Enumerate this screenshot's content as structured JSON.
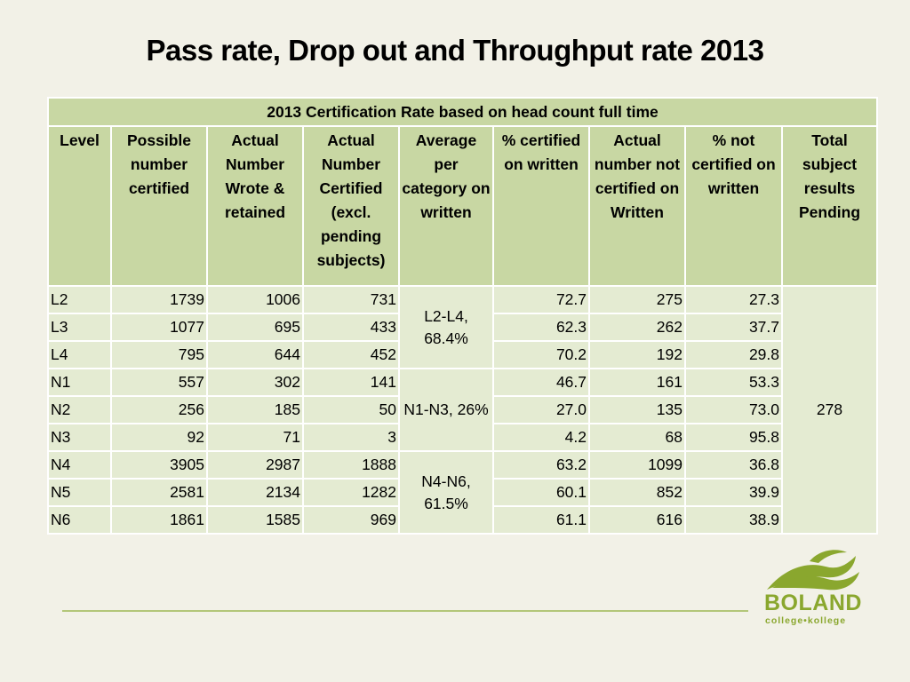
{
  "title": "Pass rate, Drop out and Throughput rate 2013",
  "table": {
    "caption": "2013 Certification Rate based on head count full time",
    "headers": [
      "Level",
      "Possible number certified",
      "Actual Number Wrote & retained",
      "Actual Number Certified (excl. pending subjects)",
      "Average per category on written",
      "% certified on written",
      "Actual number not certified on Written",
      "% not certified on written",
      "Total subject results Pending"
    ],
    "rows": [
      [
        "L2",
        "1739",
        "1006",
        "731",
        "72.7",
        "275",
        "27.3"
      ],
      [
        "L3",
        "1077",
        "695",
        "433",
        "62.3",
        "262",
        "37.7"
      ],
      [
        "L4",
        "795",
        "644",
        "452",
        "70.2",
        "192",
        "29.8"
      ],
      [
        "N1",
        "557",
        "302",
        "141",
        "46.7",
        "161",
        "53.3"
      ],
      [
        "N2",
        "256",
        "185",
        "50",
        "27.0",
        "135",
        "73.0"
      ],
      [
        "N3",
        "92",
        "71",
        "3",
        "4.2",
        "68",
        "95.8"
      ],
      [
        "N4",
        "3905",
        "2987",
        "1888",
        "63.2",
        "1099",
        "36.8"
      ],
      [
        "N5",
        "2581",
        "2134",
        "1282",
        "60.1",
        "852",
        "39.9"
      ],
      [
        "N6",
        "1861",
        "1585",
        "969",
        "61.1",
        "616",
        "38.9"
      ]
    ],
    "averages": [
      "L2-L4, 68.4%",
      "N1-N3, 26%",
      "N4-N6, 61.5%"
    ],
    "pending_total": "278"
  },
  "logo": {
    "name": "BOLAND",
    "sub": "college•kollege",
    "color": "#8aa72e"
  },
  "colors": {
    "header_bg": "#c8d7a3",
    "row_bg": "#e4ebd2",
    "page_bg": "#f2f1e7"
  }
}
